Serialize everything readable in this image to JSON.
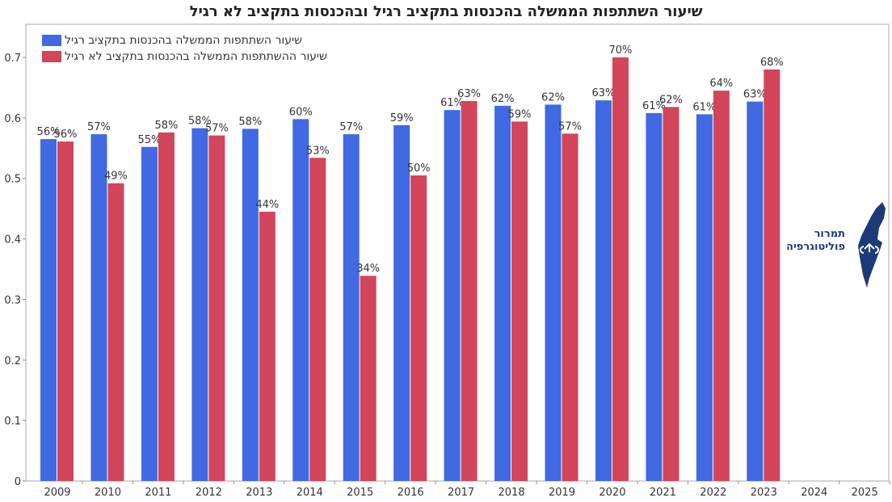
{
  "chart_data": {
    "type": "bar",
    "title": "שיעור השתתפות הממשלה בהכנסות בתקציב רגיל ובהכנסות בתקציב לא רגיל",
    "xlabel": "",
    "ylabel": "",
    "ylim": [
      0,
      0.75
    ],
    "yticks": [
      "0",
      "0.1",
      "0.2",
      "0.3",
      "0.4",
      "0.5",
      "0.6",
      "0.7"
    ],
    "categories": [
      "2009",
      "2010",
      "2011",
      "2012",
      "2013",
      "2014",
      "2015",
      "2016",
      "2017",
      "2018",
      "2019",
      "2020",
      "2021",
      "2022",
      "2023",
      "2024",
      "2025"
    ],
    "legend_placement": "top-left",
    "grid": false,
    "series": [
      {
        "name": "שיעור השתתפות הממשלה בהכנסות בתקציב רגיל",
        "color": "#4169e1",
        "values": [
          0.565,
          0.573,
          0.552,
          0.583,
          0.582,
          0.598,
          0.573,
          0.588,
          0.613,
          0.62,
          0.622,
          0.629,
          0.608,
          0.606,
          0.627,
          null,
          null
        ],
        "labels": [
          "56%",
          "57%",
          "55%",
          "58%",
          "58%",
          "60%",
          "57%",
          "59%",
          "61%",
          "62%",
          "62%",
          "63%",
          "61%",
          "61%",
          "63%",
          null,
          null
        ]
      },
      {
        "name": "שיעור ההשתתפות הממשלה בהכנסות בתקציב לא רגיל",
        "color": "#d2455a",
        "values": [
          0.561,
          0.492,
          0.576,
          0.571,
          0.445,
          0.534,
          0.339,
          0.505,
          0.628,
          0.594,
          0.574,
          0.7,
          0.618,
          0.645,
          0.68,
          null,
          null
        ],
        "labels": [
          "56%",
          "49%",
          "58%",
          "57%",
          "44%",
          "53%",
          "34%",
          "50%",
          "63%",
          "59%",
          "57%",
          "70%",
          "62%",
          "64%",
          "68%",
          null,
          null
        ]
      }
    ]
  },
  "logo": {
    "line1": "תמרור",
    "line2": "פוליטוגרפיה"
  }
}
